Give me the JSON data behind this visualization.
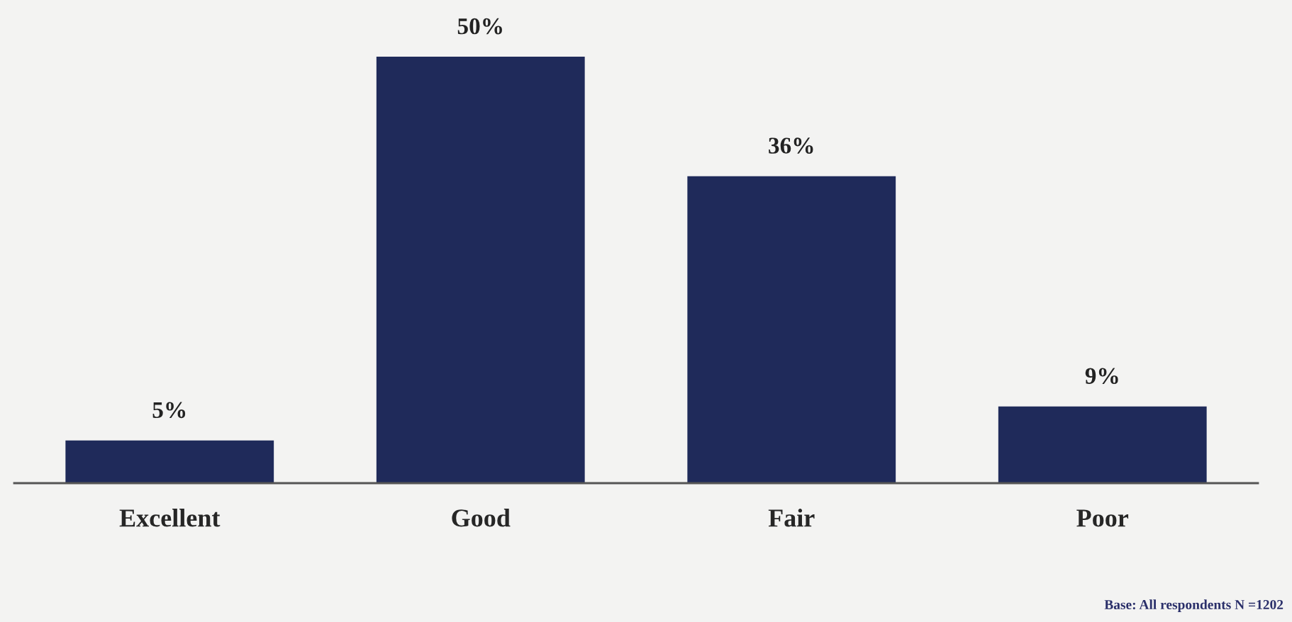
{
  "chart_data": {
    "type": "bar",
    "categories": [
      "Excellent",
      "Good",
      "Fair",
      "Poor"
    ],
    "values": [
      5,
      50,
      36,
      9
    ],
    "value_labels": [
      "5%",
      "50%",
      "36%",
      "9%"
    ],
    "color": "#1f2a5a",
    "tick_labels": "x",
    "grid": false,
    "legend": false,
    "annotations": [
      "Base: All respondents N =1202"
    ]
  }
}
